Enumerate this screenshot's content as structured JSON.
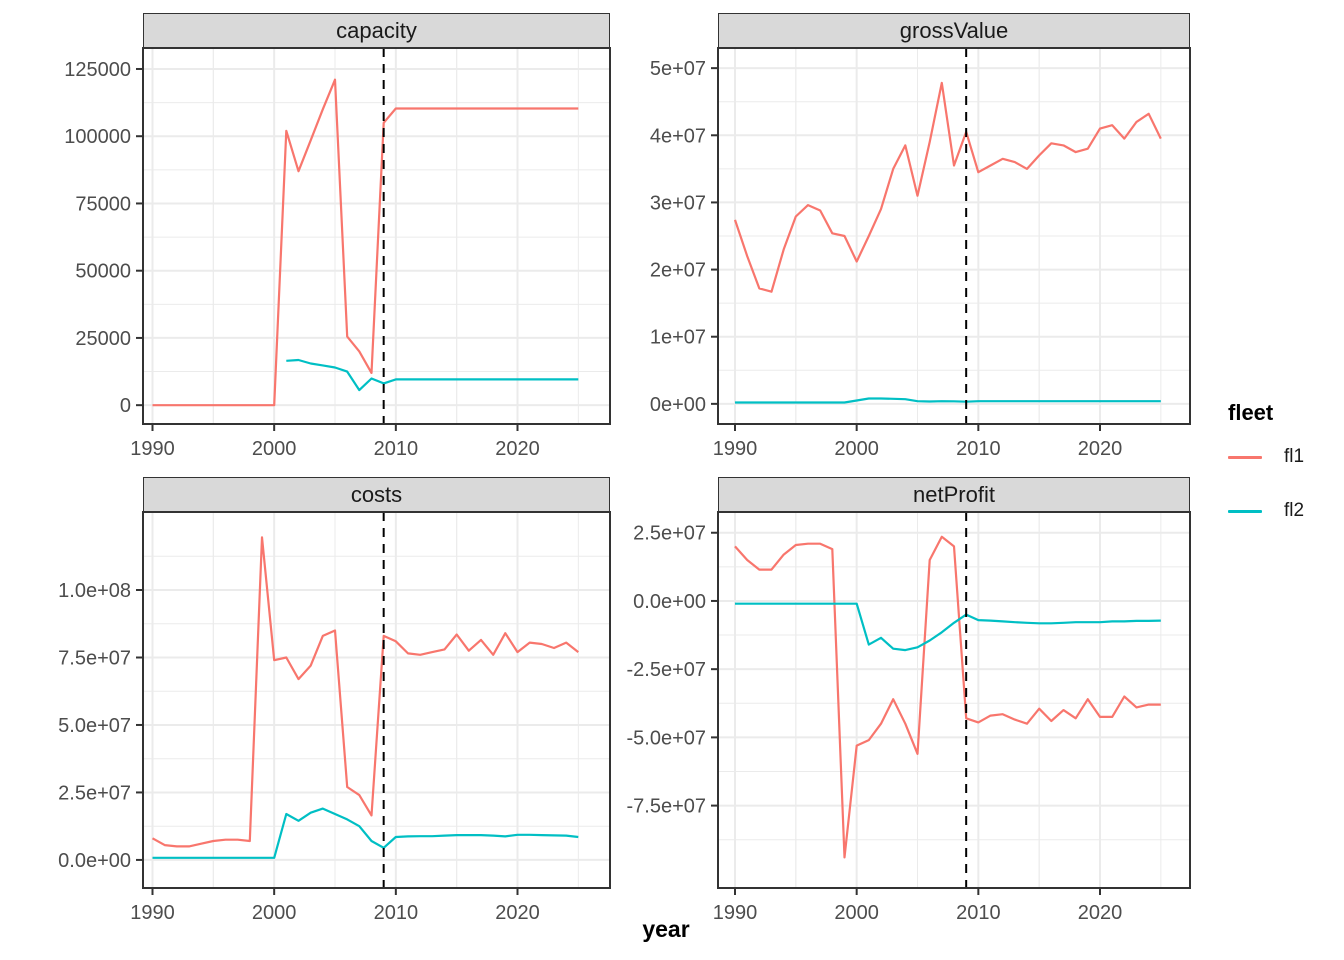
{
  "figure": {
    "xlabel": "year",
    "legend": {
      "title": "fleet",
      "entries": [
        {
          "label": "fl1",
          "series": "fl1"
        },
        {
          "label": "fl2",
          "series": "fl2"
        }
      ]
    },
    "colors": {
      "fl1": "#F8766D",
      "fl2": "#00BFC4",
      "strip_bg": "#D9D9D9",
      "panel_border": "#333333",
      "grid": "#EBEBEB",
      "axis_text": "#4D4D4D",
      "vline": "#000000"
    }
  },
  "chart_data": [
    {
      "facet": "capacity",
      "type": "line",
      "x": [
        1990,
        1991,
        1992,
        1993,
        1994,
        1995,
        1996,
        1997,
        1998,
        1999,
        2000,
        2001,
        2002,
        2003,
        2004,
        2005,
        2006,
        2007,
        2008,
        2009,
        2010,
        2011,
        2012,
        2013,
        2014,
        2015,
        2016,
        2017,
        2018,
        2019,
        2020,
        2021,
        2022,
        2023,
        2024,
        2025
      ],
      "series": [
        {
          "name": "fl1",
          "values": [
            0,
            0,
            0,
            0,
            0,
            0,
            0,
            0,
            0,
            0,
            0,
            102000,
            87000,
            98500,
            110000,
            121000,
            25500,
            20000,
            12000,
            105000,
            110300,
            110300,
            110300,
            110300,
            110300,
            110300,
            110300,
            110300,
            110300,
            110300,
            110300,
            110300,
            110300,
            110300,
            110300,
            110300
          ]
        },
        {
          "name": "fl2",
          "values": [
            null,
            null,
            null,
            null,
            null,
            null,
            null,
            null,
            null,
            null,
            null,
            16500,
            16800,
            15500,
            14800,
            14000,
            12500,
            5600,
            9900,
            8100,
            9600,
            9600,
            9600,
            9600,
            9600,
            9600,
            9600,
            9600,
            9600,
            9600,
            9600,
            9600,
            9600,
            9600,
            9600,
            9600
          ]
        }
      ],
      "vline": {
        "x": 2009,
        "style": "dashed"
      },
      "x_ticks": [
        1990,
        2000,
        2010,
        2020
      ],
      "y_ticks": [
        {
          "v": 0,
          "label": "0"
        },
        {
          "v": 25000,
          "label": "25000"
        },
        {
          "v": 50000,
          "label": "50000"
        },
        {
          "v": 75000,
          "label": "75000"
        },
        {
          "v": 100000,
          "label": "100000"
        },
        {
          "v": 125000,
          "label": "125000"
        }
      ],
      "ylim": [
        -7000,
        132800
      ],
      "grid": true,
      "legend_position": "right"
    },
    {
      "facet": "grossValue",
      "type": "line",
      "x": [
        1990,
        1991,
        1992,
        1993,
        1994,
        1995,
        1996,
        1997,
        1998,
        1999,
        2000,
        2001,
        2002,
        2003,
        2004,
        2005,
        2006,
        2007,
        2008,
        2009,
        2010,
        2011,
        2012,
        2013,
        2014,
        2015,
        2016,
        2017,
        2018,
        2019,
        2020,
        2021,
        2022,
        2023,
        2024,
        2025
      ],
      "series": [
        {
          "name": "fl1",
          "values": [
            27400000,
            22000000,
            17200000,
            16700000,
            23000000,
            27900000,
            29600000,
            28800000,
            25400000,
            25000000,
            21200000,
            25000000,
            29000000,
            35000000,
            38500000,
            31000000,
            39000000,
            47800000,
            35500000,
            40500000,
            34500000,
            35500000,
            36500000,
            36000000,
            35000000,
            37000000,
            38800000,
            38500000,
            37500000,
            38000000,
            41000000,
            41500000,
            39500000,
            42000000,
            43200000,
            39500000
          ]
        },
        {
          "name": "fl2",
          "values": [
            200000,
            200000,
            200000,
            200000,
            200000,
            200000,
            200000,
            200000,
            200000,
            200000,
            500000,
            800000,
            800000,
            750000,
            700000,
            400000,
            350000,
            400000,
            380000,
            320000,
            400000,
            400000,
            400000,
            400000,
            400000,
            400000,
            400000,
            400000,
            400000,
            400000,
            400000,
            400000,
            400000,
            400000,
            400000,
            400000
          ]
        }
      ],
      "vline": {
        "x": 2009,
        "style": "dashed"
      },
      "x_ticks": [
        1990,
        2000,
        2010,
        2020
      ],
      "y_ticks": [
        {
          "v": 0,
          "label": "0e+00"
        },
        {
          "v": 10000000,
          "label": "1e+07"
        },
        {
          "v": 20000000,
          "label": "2e+07"
        },
        {
          "v": 30000000,
          "label": "3e+07"
        },
        {
          "v": 40000000,
          "label": "4e+07"
        },
        {
          "v": 50000000,
          "label": "5e+07"
        }
      ],
      "ylim": [
        -3000000,
        53000000
      ],
      "grid": true,
      "legend_position": "right"
    },
    {
      "facet": "costs",
      "type": "line",
      "x": [
        1990,
        1991,
        1992,
        1993,
        1994,
        1995,
        1996,
        1997,
        1998,
        1999,
        2000,
        2001,
        2002,
        2003,
        2004,
        2005,
        2006,
        2007,
        2008,
        2009,
        2010,
        2011,
        2012,
        2013,
        2014,
        2015,
        2016,
        2017,
        2018,
        2019,
        2020,
        2021,
        2022,
        2023,
        2024,
        2025
      ],
      "series": [
        {
          "name": "fl1",
          "values": [
            8000000,
            5500000,
            5000000,
            5000000,
            6000000,
            7000000,
            7500000,
            7500000,
            7000000,
            119500000,
            74000000,
            75000000,
            67000000,
            72000000,
            83000000,
            85000000,
            27000000,
            24000000,
            16500000,
            83000000,
            81000000,
            76500000,
            76000000,
            77000000,
            78000000,
            83500000,
            77500000,
            81500000,
            76000000,
            84000000,
            77000000,
            80500000,
            80000000,
            78500000,
            80500000,
            77000000
          ]
        },
        {
          "name": "fl2",
          "values": [
            800000,
            800000,
            800000,
            800000,
            800000,
            800000,
            800000,
            800000,
            800000,
            800000,
            800000,
            17000000,
            14500000,
            17500000,
            19000000,
            17000000,
            15000000,
            12500000,
            7000000,
            4500000,
            8500000,
            8700000,
            8800000,
            8800000,
            9000000,
            9200000,
            9200000,
            9200000,
            9000000,
            8700000,
            9300000,
            9300000,
            9200000,
            9100000,
            9000000,
            8500000
          ]
        }
      ],
      "vline": {
        "x": 2009,
        "style": "dashed"
      },
      "x_ticks": [
        1990,
        2000,
        2010,
        2020
      ],
      "y_ticks": [
        {
          "v": 0,
          "label": "0.0e+00"
        },
        {
          "v": 25000000,
          "label": "2.5e+07"
        },
        {
          "v": 50000000,
          "label": "5.0e+07"
        },
        {
          "v": 75000000,
          "label": "7.5e+07"
        },
        {
          "v": 100000000,
          "label": "1.0e+08"
        }
      ],
      "ylim": [
        -10400000,
        128900000
      ],
      "grid": true,
      "legend_position": "right"
    },
    {
      "facet": "netProfit",
      "type": "line",
      "x": [
        1990,
        1991,
        1992,
        1993,
        1994,
        1995,
        1996,
        1997,
        1998,
        1999,
        2000,
        2001,
        2002,
        2003,
        2004,
        2005,
        2006,
        2007,
        2008,
        2009,
        2010,
        2011,
        2012,
        2013,
        2014,
        2015,
        2016,
        2017,
        2018,
        2019,
        2020,
        2021,
        2022,
        2023,
        2024,
        2025
      ],
      "series": [
        {
          "name": "fl1",
          "values": [
            20000000,
            15000000,
            11500000,
            11500000,
            17000000,
            20500000,
            21000000,
            21000000,
            19000000,
            -94000000,
            -53000000,
            -51000000,
            -45000000,
            -36000000,
            -45000000,
            -56000000,
            15000000,
            23500000,
            20000000,
            -43000000,
            -44500000,
            -42000000,
            -41500000,
            -43500000,
            -45000000,
            -39500000,
            -44000000,
            -40000000,
            -43000000,
            -36000000,
            -42500000,
            -42500000,
            -35000000,
            -39000000,
            -38000000,
            -38000000
          ]
        },
        {
          "name": "fl2",
          "values": [
            -1000000,
            -1000000,
            -1000000,
            -1000000,
            -1000000,
            -1000000,
            -1000000,
            -1000000,
            -1000000,
            -1000000,
            -1000000,
            -16000000,
            -13500000,
            -17500000,
            -18000000,
            -17000000,
            -14500000,
            -11500000,
            -8000000,
            -5000000,
            -7000000,
            -7200000,
            -7500000,
            -7800000,
            -8000000,
            -8200000,
            -8200000,
            -8000000,
            -7800000,
            -7800000,
            -7800000,
            -7500000,
            -7500000,
            -7300000,
            -7300000,
            -7200000
          ]
        }
      ],
      "vline": {
        "x": 2009,
        "style": "dashed"
      },
      "x_ticks": [
        1990,
        2000,
        2010,
        2020
      ],
      "y_ticks": [
        {
          "v": -75000000,
          "label": "-7.5e+07"
        },
        {
          "v": -50000000,
          "label": "-5.0e+07"
        },
        {
          "v": -25000000,
          "label": "-2.5e+07"
        },
        {
          "v": 0,
          "label": "0.0e+00"
        },
        {
          "v": 25000000,
          "label": "2.5e+07"
        }
      ],
      "ylim": [
        -105200000,
        32600000
      ],
      "grid": true,
      "legend_position": "right"
    }
  ]
}
